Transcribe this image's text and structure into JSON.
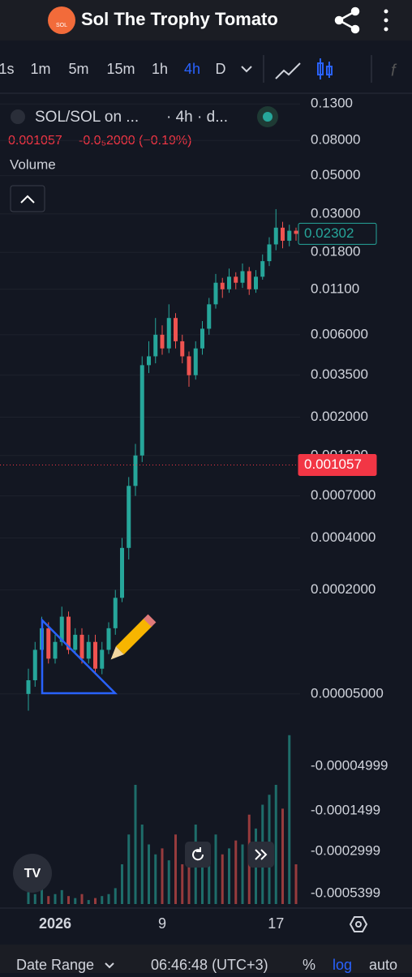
{
  "header": {
    "title": "Sol The Trophy Tomato",
    "logo": "SOL"
  },
  "toolbar": {
    "intervals": [
      "1s",
      "1m",
      "5m",
      "15m",
      "1h",
      "4h",
      "D"
    ],
    "active": 5
  },
  "legend": {
    "symbol": "SOL/SOL on ...",
    "interval": "· 4h · d...",
    "price": "0.001057",
    "change": "-0.0₅2000 (−0.19%)",
    "volume": "Volume"
  },
  "chart_data": {
    "type": "candlestick",
    "log_scale": true,
    "up_color": "#26a69a",
    "down_color": "#ef5350",
    "categories": [
      null,
      null,
      null,
      null,
      "2026",
      null,
      null,
      null,
      null,
      null,
      null,
      null,
      null,
      null,
      null,
      null,
      null,
      null,
      null,
      null,
      "9",
      null,
      null,
      null,
      null,
      null,
      null,
      null,
      null,
      null,
      null,
      null,
      null,
      null,
      null,
      null,
      null,
      "17",
      null,
      null,
      null
    ],
    "open": [
      5e-05,
      6e-05,
      9e-05,
      0.00012,
      8e-05,
      0.0001,
      0.00014,
      9e-05,
      0.00011,
      8e-05,
      0.0001,
      7e-05,
      9e-05,
      0.00012,
      0.00018,
      0.00035,
      0.0008,
      0.0012,
      0.004,
      0.0045,
      0.006,
      0.005,
      0.0075,
      0.0055,
      0.0045,
      0.0035,
      0.005,
      0.0065,
      0.009,
      0.012,
      0.011,
      0.013,
      0.012,
      0.014,
      0.011,
      0.013,
      0.016,
      0.02,
      0.025,
      0.021,
      0.024
    ],
    "high": [
      7e-05,
      0.0001,
      0.00014,
      0.00013,
      0.00011,
      0.00016,
      0.00015,
      0.00012,
      0.00012,
      0.00011,
      0.00011,
      0.0001,
      0.00013,
      0.0002,
      0.0004,
      0.0009,
      0.0014,
      0.0045,
      0.0055,
      0.0075,
      0.0068,
      0.009,
      0.008,
      0.006,
      0.0048,
      0.0055,
      0.0072,
      0.0098,
      0.0135,
      0.0128,
      0.0145,
      0.0138,
      0.0155,
      0.0148,
      0.0142,
      0.0175,
      0.022,
      0.032,
      0.027,
      0.026,
      0.025
    ],
    "low": [
      4e-05,
      5.5e-05,
      8e-05,
      7.5e-05,
      7.5e-05,
      9.5e-05,
      8.5e-05,
      8.5e-05,
      7.5e-05,
      7.5e-05,
      6.5e-05,
      6.5e-05,
      8.5e-05,
      0.00011,
      0.00017,
      0.0003,
      0.0007,
      0.0011,
      0.0036,
      0.0041,
      0.0046,
      0.0047,
      0.005,
      0.0041,
      0.003,
      0.0033,
      0.0046,
      0.006,
      0.0085,
      0.0098,
      0.0105,
      0.011,
      0.0112,
      0.0102,
      0.0105,
      0.0125,
      0.015,
      0.0185,
      0.019,
      0.0195,
      0.021
    ],
    "close": [
      6e-05,
      9e-05,
      0.00012,
      8e-05,
      0.0001,
      0.00014,
      9e-05,
      0.00011,
      8e-05,
      0.0001,
      7e-05,
      9e-05,
      0.00012,
      0.00018,
      0.00035,
      0.0008,
      0.0012,
      0.004,
      0.0045,
      0.006,
      0.005,
      0.0075,
      0.0055,
      0.0045,
      0.0035,
      0.005,
      0.0065,
      0.009,
      0.012,
      0.011,
      0.013,
      0.012,
      0.014,
      0.011,
      0.013,
      0.016,
      0.02,
      0.025,
      0.021,
      0.024,
      0.02302
    ],
    "volume": [
      6,
      5,
      8,
      4,
      5,
      7,
      4,
      3,
      5,
      2,
      3,
      4,
      5,
      8,
      20,
      35,
      60,
      40,
      30,
      25,
      28,
      22,
      35,
      20,
      30,
      40,
      25,
      30,
      35,
      25,
      28,
      32,
      30,
      45,
      38,
      50,
      55,
      60,
      48,
      85,
      20
    ],
    "volume_ylim": [
      0,
      100
    ],
    "ylim": [
      2.5e-05,
      0.15
    ],
    "yticks": [
      {
        "value": 0.13,
        "label": "0.1300"
      },
      {
        "value": 0.08,
        "label": "0.08000"
      },
      {
        "value": 0.05,
        "label": "0.05000"
      },
      {
        "value": 0.03,
        "label": "0.03000"
      },
      {
        "value": 0.018,
        "label": "0.01800"
      },
      {
        "value": 0.011,
        "label": "0.01100"
      },
      {
        "value": 0.006,
        "label": "0.006000"
      },
      {
        "value": 0.0035,
        "label": "0.003500"
      },
      {
        "value": 0.002,
        "label": "0.002000"
      },
      {
        "value": 0.0012,
        "label": "0.001200"
      },
      {
        "value": 0.0007,
        "label": "0.0007000"
      },
      {
        "value": 0.0004,
        "label": "0.0004000"
      },
      {
        "value": 0.0002,
        "label": "0.0002000"
      },
      {
        "value": 5e-05,
        "label": "0.00005000"
      }
    ],
    "lower_axis_labels": [
      "-0.00004999",
      "-0.0001499",
      "-0.0002999",
      "-0.0005399"
    ],
    "price_lines": [
      {
        "value": 0.02302,
        "label": "0.02302",
        "color": "#26a69a"
      },
      {
        "value": 0.001057,
        "label": "0.001057",
        "color": "#f23645"
      }
    ]
  },
  "footer": {
    "items": [
      "Date Range",
      "06:46:48 (UTC+3)",
      "%",
      "log",
      "auto"
    ]
  }
}
